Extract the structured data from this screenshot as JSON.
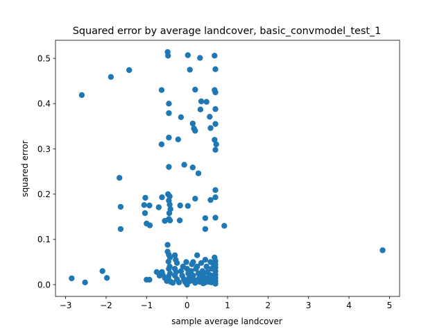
{
  "chart_data": {
    "type": "scatter",
    "title": "Squared error by average landcover, basic_convmodel_test_1",
    "xlabel": "sample average landcover",
    "ylabel": "squared error",
    "xlim": [
      -3.25,
      5.25
    ],
    "ylim": [
      -0.026,
      0.54
    ],
    "xticks": [
      -3,
      -2,
      -1,
      0,
      1,
      2,
      3,
      4,
      5
    ],
    "xtick_labels": [
      "−3",
      "−2",
      "−1",
      "0",
      "1",
      "2",
      "3",
      "4",
      "5"
    ],
    "yticks": [
      0.0,
      0.1,
      0.2,
      0.3,
      0.4,
      0.5
    ],
    "ytick_labels": [
      "0.0",
      "0.1",
      "0.2",
      "0.3",
      "0.4",
      "0.5"
    ],
    "grid": false,
    "marker_color": "#1f77b4",
    "points": [
      [
        -2.85,
        0.014
      ],
      [
        -2.52,
        0.005
      ],
      [
        -2.09,
        0.03
      ],
      [
        -1.98,
        0.015
      ],
      [
        -2.6,
        0.419
      ],
      [
        -1.88,
        0.459
      ],
      [
        -1.43,
        0.474
      ],
      [
        -1.67,
        0.236
      ],
      [
        -1.64,
        0.172
      ],
      [
        -1.64,
        0.123
      ],
      [
        -1.06,
        0.176
      ],
      [
        -1.03,
        0.192
      ],
      [
        -1.04,
        0.158
      ],
      [
        -1.0,
        0.135
      ],
      [
        -0.93,
        0.175
      ],
      [
        -0.92,
        0.131
      ],
      [
        -1.0,
        0.011
      ],
      [
        -0.93,
        0.011
      ],
      [
        -0.63,
        0.43
      ],
      [
        -0.63,
        0.31
      ],
      [
        -0.62,
        0.193
      ],
      [
        -0.7,
        0.171
      ],
      [
        -0.55,
        0.141
      ],
      [
        -0.48,
        0.514
      ],
      [
        -0.47,
        0.506
      ],
      [
        -0.45,
        0.4
      ],
      [
        -0.45,
        0.379
      ],
      [
        -0.45,
        0.325
      ],
      [
        -0.45,
        0.26
      ],
      [
        -0.47,
        0.2
      ],
      [
        -0.43,
        0.195
      ],
      [
        -0.45,
        0.186
      ],
      [
        -0.43,
        0.177
      ],
      [
        -0.41,
        0.167
      ],
      [
        -0.44,
        0.158
      ],
      [
        -0.45,
        0.145
      ],
      [
        -0.42,
        0.142
      ],
      [
        -0.48,
        0.088
      ],
      [
        -0.22,
        0.321
      ],
      [
        -0.15,
        0.37
      ],
      [
        -0.17,
        0.175
      ],
      [
        -0.18,
        0.142
      ],
      [
        0.02,
        0.507
      ],
      [
        0.07,
        0.475
      ],
      [
        0.32,
        0.501
      ],
      [
        0.2,
        0.431
      ],
      [
        0.35,
        0.405
      ],
      [
        0.33,
        0.387
      ],
      [
        0.48,
        0.404
      ],
      [
        0.56,
        0.371
      ],
      [
        0.14,
        0.356
      ],
      [
        0.17,
        0.345
      ],
      [
        0.2,
        0.34
      ],
      [
        0.58,
        0.346
      ],
      [
        -0.07,
        0.265
      ],
      [
        0.14,
        0.259
      ],
      [
        0.28,
        0.246
      ],
      [
        0.2,
        0.19
      ],
      [
        0.02,
        0.174
      ],
      [
        0.45,
        0.147
      ],
      [
        0.45,
        0.123
      ],
      [
        0.58,
        0.187
      ],
      [
        0.68,
        0.506
      ],
      [
        0.7,
        0.476
      ],
      [
        0.68,
        0.43
      ],
      [
        0.7,
        0.425
      ],
      [
        0.7,
        0.388
      ],
      [
        0.7,
        0.355
      ],
      [
        0.68,
        0.32
      ],
      [
        0.72,
        0.31
      ],
      [
        0.7,
        0.298
      ],
      [
        0.7,
        0.209
      ],
      [
        0.7,
        0.193
      ],
      [
        0.7,
        0.148
      ],
      [
        0.92,
        0.13
      ],
      [
        4.83,
        0.076
      ],
      [
        -0.75,
        0.028
      ],
      [
        -0.68,
        0.02
      ],
      [
        -0.62,
        0.028
      ],
      [
        -0.55,
        0.015
      ],
      [
        -0.5,
        0.008
      ],
      [
        -0.48,
        0.073
      ],
      [
        -0.45,
        0.066
      ],
      [
        -0.42,
        0.06
      ],
      [
        -0.46,
        0.051
      ],
      [
        -0.43,
        0.04
      ],
      [
        -0.45,
        0.035
      ],
      [
        -0.42,
        0.025
      ],
      [
        -0.46,
        0.018
      ],
      [
        -0.45,
        0.01
      ],
      [
        -0.4,
        0.006
      ],
      [
        -0.3,
        0.065
      ],
      [
        -0.28,
        0.055
      ],
      [
        -0.25,
        0.048
      ],
      [
        -0.3,
        0.035
      ],
      [
        -0.27,
        0.028
      ],
      [
        -0.3,
        0.02
      ],
      [
        -0.25,
        0.012
      ],
      [
        -0.2,
        0.005
      ],
      [
        -0.15,
        0.03
      ],
      [
        -0.12,
        0.02
      ],
      [
        -0.08,
        0.012
      ],
      [
        -0.05,
        0.006
      ],
      [
        -0.02,
        0.05
      ],
      [
        0.0,
        0.035
      ],
      [
        0.03,
        0.025
      ],
      [
        0.05,
        0.015
      ],
      [
        0.08,
        0.008
      ],
      [
        0.1,
        0.03
      ],
      [
        0.12,
        0.045
      ],
      [
        0.15,
        0.02
      ],
      [
        0.18,
        0.01
      ],
      [
        0.2,
        0.004
      ],
      [
        0.22,
        0.035
      ],
      [
        0.25,
        0.065
      ],
      [
        0.28,
        0.025
      ],
      [
        0.3,
        0.015
      ],
      [
        0.32,
        0.006
      ],
      [
        0.35,
        0.048
      ],
      [
        0.38,
        0.03
      ],
      [
        0.4,
        0.02
      ],
      [
        0.42,
        0.01
      ],
      [
        0.45,
        0.055
      ],
      [
        0.48,
        0.04
      ],
      [
        0.5,
        0.028
      ],
      [
        0.52,
        0.015
      ],
      [
        0.55,
        0.006
      ],
      [
        0.58,
        0.05
      ],
      [
        0.6,
        0.035
      ],
      [
        0.62,
        0.02
      ],
      [
        0.65,
        0.01
      ],
      [
        0.68,
        0.06
      ],
      [
        0.7,
        0.052
      ],
      [
        0.7,
        0.045
      ],
      [
        0.7,
        0.038
      ],
      [
        0.7,
        0.03
      ],
      [
        0.7,
        0.022
      ],
      [
        0.7,
        0.015
      ],
      [
        0.7,
        0.008
      ],
      [
        0.7,
        0.002
      ],
      [
        0.66,
        0.045
      ],
      [
        0.6,
        0.005
      ],
      [
        0.45,
        0.005
      ],
      [
        0.25,
        0.04
      ],
      [
        -0.1,
        0.04
      ],
      [
        -0.35,
        0.004
      ],
      [
        -0.6,
        0.022
      ],
      [
        0.0,
        0.0
      ],
      [
        0.15,
        0.05
      ],
      [
        0.55,
        0.022
      ],
      [
        0.4,
        0.003
      ]
    ]
  }
}
